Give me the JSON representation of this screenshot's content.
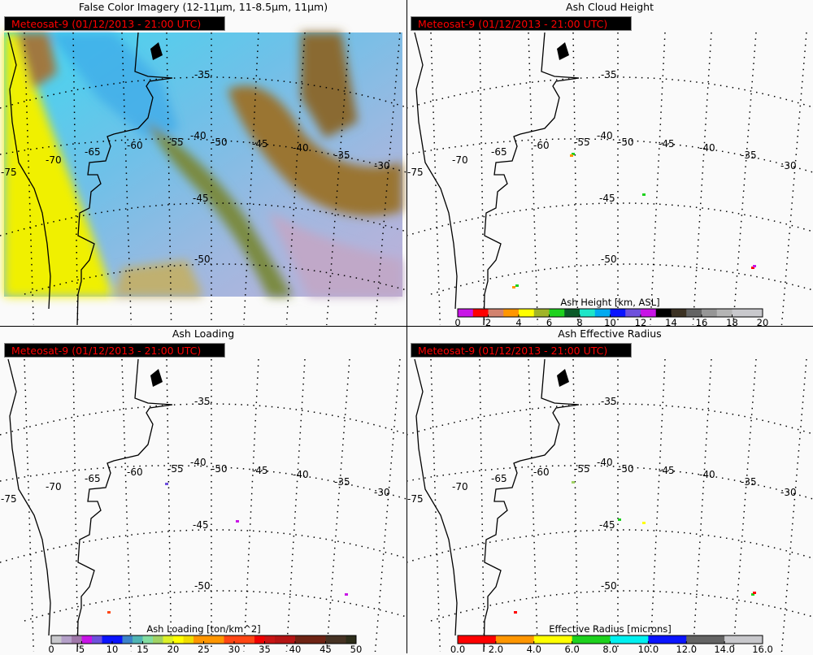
{
  "satellite_label": "Meteosat-9  (01/12/2013 - 21:00 UTC)",
  "panels": [
    {
      "title": "False Color Imagery (12-11μm, 11-8.5μm, 11μm)",
      "type": "false-color"
    },
    {
      "title": "Ash Cloud Height",
      "type": "height",
      "colorbar": {
        "title": "Ash Height [km, ASL]",
        "range": [
          0,
          20
        ],
        "ticks": [
          "0",
          "2",
          "4",
          "6",
          "8",
          "10",
          "12",
          "14",
          "16",
          "18",
          "20"
        ],
        "colors": [
          "#c814e6",
          "#ff0000",
          "#d2826e",
          "#ff9600",
          "#ffff00",
          "#a0b428",
          "#1ed21e",
          "#0a5a28",
          "#1ee6c8",
          "#00aaf0",
          "#0a14ff",
          "#6e50dc",
          "#c814e6",
          "#000000",
          "#3c3223",
          "#646464",
          "#969696",
          "#b4b4b4",
          "#c8c8cc",
          "#c8c8cc"
        ]
      },
      "ash_colors": [
        "#ff9600",
        "#1ed21e",
        "#ff0000",
        "#c814e6"
      ]
    },
    {
      "title": "Ash Loading",
      "type": "loading",
      "colorbar": {
        "title": "Ash Loading [ton/km^2]",
        "range": [
          0,
          50
        ],
        "ticks": [
          "0",
          "5",
          "10",
          "15",
          "20",
          "25",
          "30",
          "35",
          "40",
          "45",
          "50"
        ],
        "colors": [
          "#c8c8cc",
          "#b4a0c8",
          "#a078aa",
          "#c814e6",
          "#6e50dc",
          "#0a14ff",
          "#0a14ff",
          "#3c82c8",
          "#50b4b4",
          "#82dca0",
          "#a0d264",
          "#dcf028",
          "#ffff00",
          "#f0dc00",
          "#ff9600",
          "#ff9600",
          "#ff9600",
          "#ff4614",
          "#ff4614",
          "#ff4614",
          "#f00000",
          "#c81414",
          "#b41414",
          "#b41414",
          "#6e2314",
          "#6e2314",
          "#6e2314",
          "#463223",
          "#463223",
          "#2d2d19"
        ]
      },
      "ash_colors": [
        "#ff4614",
        "#c814e6",
        "#6e50dc"
      ]
    },
    {
      "title": "Ash Effective Radius",
      "type": "radius",
      "colorbar": {
        "title": "Effective Radius [microns]",
        "range": [
          0,
          16
        ],
        "ticks": [
          "0.0",
          "2.0",
          "4.0",
          "6.0",
          "8.0",
          "10.0",
          "12.0",
          "14.0",
          "16.0"
        ],
        "colors": [
          "#ff0000",
          "#ff9600",
          "#ffff00",
          "#1ed21e",
          "#00f0f0",
          "#0a14ff",
          "#646464",
          "#c8c8cc"
        ]
      },
      "ash_colors": [
        "#ff0000",
        "#1ed21e",
        "#ffff00"
      ]
    }
  ],
  "grid": {
    "lat_labels": [
      "-35",
      "-40",
      "-45",
      "-50"
    ],
    "lon_labels": [
      "-75",
      "-70",
      "-65",
      "-60",
      "-55",
      "-50",
      "-45",
      "-40",
      "-35",
      "-30"
    ]
  },
  "colors": {
    "label_bg": "#000000",
    "label_text": "#ff0000",
    "coast": "#000000",
    "grid": "#000000"
  }
}
